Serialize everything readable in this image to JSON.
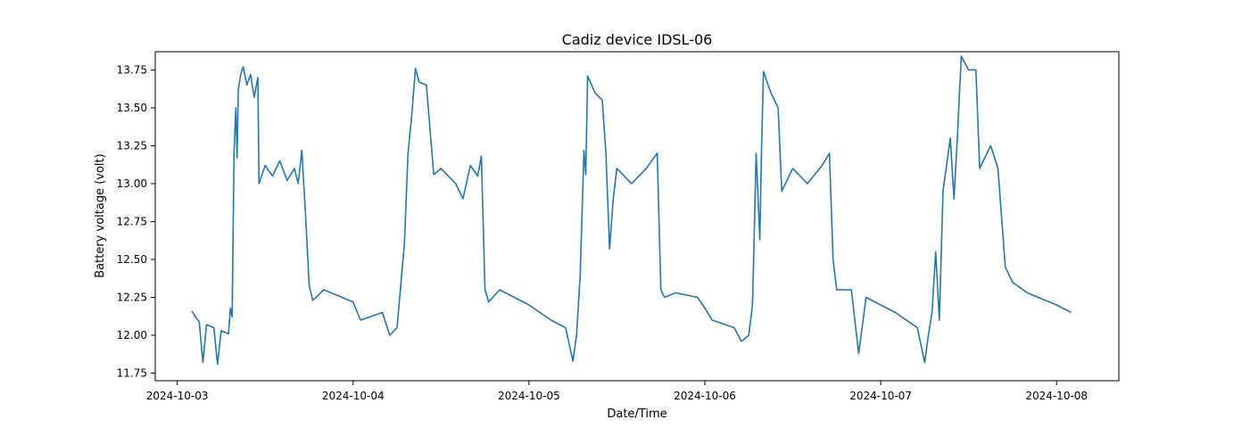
{
  "chart_data": {
    "type": "line",
    "title": "Cadiz device IDSL-06",
    "xlabel": "Date/Time",
    "ylabel": "Battery voltage (volt)",
    "xlim": [
      "2024-10-02 21:00",
      "2024-10-08 08:30"
    ],
    "ylim": [
      11.7,
      13.87
    ],
    "x_ticks": [
      "2024-10-03",
      "2024-10-04",
      "2024-10-05",
      "2024-10-06",
      "2024-10-07",
      "2024-10-08"
    ],
    "y_ticks": [
      11.75,
      12.0,
      12.25,
      12.5,
      12.75,
      13.0,
      13.25,
      13.5,
      13.75
    ],
    "grid": false,
    "legend": "none",
    "series": [
      {
        "color": "#1f77b4",
        "points": [
          [
            "2024-10-03 02:00",
            12.16
          ],
          [
            "2024-10-03 02:30",
            12.12
          ],
          [
            "2024-10-03 03:00",
            12.09
          ],
          [
            "2024-10-03 03:30",
            11.82
          ],
          [
            "2024-10-03 04:00",
            12.07
          ],
          [
            "2024-10-03 05:00",
            12.05
          ],
          [
            "2024-10-03 05:30",
            11.81
          ],
          [
            "2024-10-03 06:00",
            12.03
          ],
          [
            "2024-10-03 07:00",
            12.01
          ],
          [
            "2024-10-03 07:15",
            12.18
          ],
          [
            "2024-10-03 07:30",
            12.12
          ],
          [
            "2024-10-03 07:45",
            13.2
          ],
          [
            "2024-10-03 08:00",
            13.5
          ],
          [
            "2024-10-03 08:10",
            13.17
          ],
          [
            "2024-10-03 08:20",
            13.62
          ],
          [
            "2024-10-03 08:40",
            13.72
          ],
          [
            "2024-10-03 09:00",
            13.77
          ],
          [
            "2024-10-03 09:30",
            13.65
          ],
          [
            "2024-10-03 10:00",
            13.72
          ],
          [
            "2024-10-03 10:30",
            13.57
          ],
          [
            "2024-10-03 11:00",
            13.7
          ],
          [
            "2024-10-03 11:10",
            13.0
          ],
          [
            "2024-10-03 12:00",
            13.12
          ],
          [
            "2024-10-03 13:00",
            13.05
          ],
          [
            "2024-10-03 14:00",
            13.15
          ],
          [
            "2024-10-03 15:00",
            13.02
          ],
          [
            "2024-10-03 16:00",
            13.1
          ],
          [
            "2024-10-03 16:30",
            13.0
          ],
          [
            "2024-10-03 17:00",
            13.22
          ],
          [
            "2024-10-03 17:30",
            12.8
          ],
          [
            "2024-10-03 18:00",
            12.33
          ],
          [
            "2024-10-03 18:30",
            12.23
          ],
          [
            "2024-10-03 20:00",
            12.3
          ],
          [
            "2024-10-04 00:00",
            12.22
          ],
          [
            "2024-10-04 01:00",
            12.1
          ],
          [
            "2024-10-04 04:00",
            12.15
          ],
          [
            "2024-10-04 05:00",
            12.0
          ],
          [
            "2024-10-04 06:00",
            12.05
          ],
          [
            "2024-10-04 07:00",
            12.6
          ],
          [
            "2024-10-04 07:30",
            13.2
          ],
          [
            "2024-10-04 08:00",
            13.45
          ],
          [
            "2024-10-04 08:30",
            13.76
          ],
          [
            "2024-10-04 09:00",
            13.67
          ],
          [
            "2024-10-04 10:00",
            13.65
          ],
          [
            "2024-10-04 11:00",
            13.06
          ],
          [
            "2024-10-04 12:00",
            13.1
          ],
          [
            "2024-10-04 14:00",
            13.0
          ],
          [
            "2024-10-04 15:00",
            12.9
          ],
          [
            "2024-10-04 16:00",
            13.12
          ],
          [
            "2024-10-04 17:00",
            13.05
          ],
          [
            "2024-10-04 17:30",
            13.18
          ],
          [
            "2024-10-04 18:00",
            12.3
          ],
          [
            "2024-10-04 18:30",
            12.22
          ],
          [
            "2024-10-04 20:00",
            12.3
          ],
          [
            "2024-10-05 00:00",
            12.2
          ],
          [
            "2024-10-05 03:00",
            12.1
          ],
          [
            "2024-10-05 05:00",
            12.05
          ],
          [
            "2024-10-05 06:00",
            11.83
          ],
          [
            "2024-10-05 06:30",
            12.0
          ],
          [
            "2024-10-05 07:00",
            12.4
          ],
          [
            "2024-10-05 07:30",
            13.22
          ],
          [
            "2024-10-05 07:45",
            13.06
          ],
          [
            "2024-10-05 08:00",
            13.71
          ],
          [
            "2024-10-05 09:00",
            13.6
          ],
          [
            "2024-10-05 10:00",
            13.55
          ],
          [
            "2024-10-05 10:30",
            13.2
          ],
          [
            "2024-10-05 11:00",
            12.57
          ],
          [
            "2024-10-05 11:30",
            12.9
          ],
          [
            "2024-10-05 12:00",
            13.1
          ],
          [
            "2024-10-05 14:00",
            13.0
          ],
          [
            "2024-10-05 16:00",
            13.1
          ],
          [
            "2024-10-05 17:30",
            13.2
          ],
          [
            "2024-10-05 18:00",
            12.3
          ],
          [
            "2024-10-05 18:30",
            12.25
          ],
          [
            "2024-10-05 20:00",
            12.28
          ],
          [
            "2024-10-05 23:00",
            12.25
          ],
          [
            "2024-10-06 00:00",
            12.18
          ],
          [
            "2024-10-06 01:00",
            12.1
          ],
          [
            "2024-10-06 04:00",
            12.05
          ],
          [
            "2024-10-06 05:00",
            11.96
          ],
          [
            "2024-10-06 06:00",
            12.0
          ],
          [
            "2024-10-06 06:30",
            12.2
          ],
          [
            "2024-10-06 07:00",
            13.2
          ],
          [
            "2024-10-06 07:30",
            12.63
          ],
          [
            "2024-10-06 07:45",
            13.25
          ],
          [
            "2024-10-06 08:00",
            13.74
          ],
          [
            "2024-10-06 09:00",
            13.6
          ],
          [
            "2024-10-06 10:00",
            13.5
          ],
          [
            "2024-10-06 10:30",
            12.95
          ],
          [
            "2024-10-06 12:00",
            13.1
          ],
          [
            "2024-10-06 14:00",
            13.0
          ],
          [
            "2024-10-06 16:00",
            13.12
          ],
          [
            "2024-10-06 17:00",
            13.2
          ],
          [
            "2024-10-06 17:30",
            12.5
          ],
          [
            "2024-10-06 18:00",
            12.3
          ],
          [
            "2024-10-06 20:00",
            12.3
          ],
          [
            "2024-10-06 21:00",
            11.88
          ],
          [
            "2024-10-06 22:00",
            12.25
          ],
          [
            "2024-10-07 02:00",
            12.15
          ],
          [
            "2024-10-07 05:00",
            12.05
          ],
          [
            "2024-10-07 06:00",
            11.82
          ],
          [
            "2024-10-07 06:30",
            12.0
          ],
          [
            "2024-10-07 07:00",
            12.15
          ],
          [
            "2024-10-07 07:30",
            12.55
          ],
          [
            "2024-10-07 08:00",
            12.1
          ],
          [
            "2024-10-07 08:30",
            12.95
          ],
          [
            "2024-10-07 09:30",
            13.3
          ],
          [
            "2024-10-07 10:00",
            12.9
          ],
          [
            "2024-10-07 10:30",
            13.34
          ],
          [
            "2024-10-07 11:00",
            13.84
          ],
          [
            "2024-10-07 12:00",
            13.75
          ],
          [
            "2024-10-07 13:00",
            13.75
          ],
          [
            "2024-10-07 13:30",
            13.1
          ],
          [
            "2024-10-07 15:00",
            13.25
          ],
          [
            "2024-10-07 16:00",
            13.1
          ],
          [
            "2024-10-07 17:00",
            12.45
          ],
          [
            "2024-10-07 18:00",
            12.35
          ],
          [
            "2024-10-07 20:00",
            12.28
          ],
          [
            "2024-10-08 00:00",
            12.2
          ],
          [
            "2024-10-08 02:00",
            12.15
          ]
        ]
      }
    ]
  }
}
